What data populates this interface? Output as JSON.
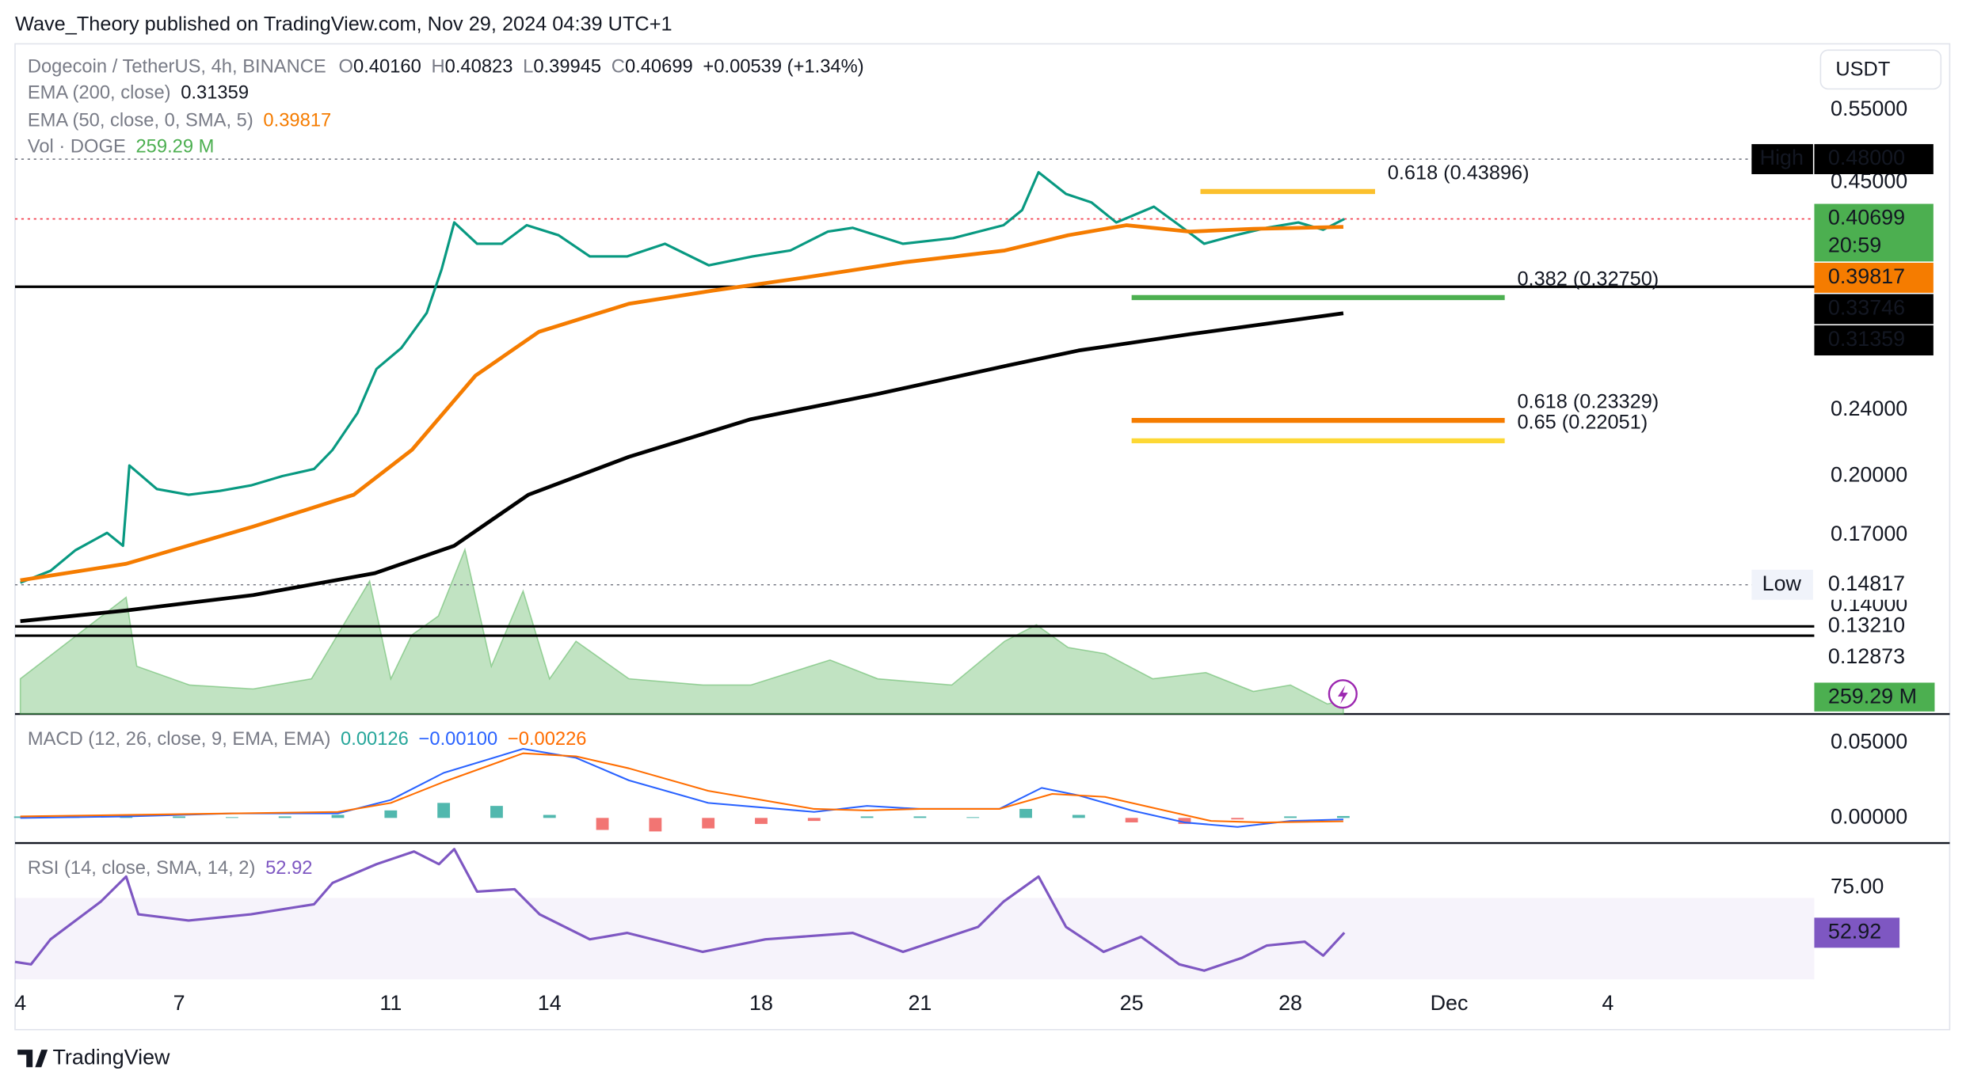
{
  "header": {
    "text": "Wave_Theory published on TradingView.com, Nov 29, 2024 04:39 UTC+1"
  },
  "footer": {
    "brand": "TradingView"
  },
  "chart_data": {
    "type": "line",
    "symbol": "Dogecoin / TetherUS, 4h, BINANCE",
    "ohlc": [
      {
        "label": "O",
        "value": "0.40160"
      },
      {
        "label": "H",
        "value": "0.40823"
      },
      {
        "label": "L",
        "value": "0.39945"
      },
      {
        "label": "C",
        "value": "0.40699"
      }
    ],
    "change": "+0.00539 (+1.34%)",
    "currency": "USDT",
    "log_scale": true,
    "xlim": [
      -0.1,
      33.9
    ],
    "xticks": [
      {
        "value": 0,
        "label": "4"
      },
      {
        "value": 3,
        "label": "7"
      },
      {
        "value": 7,
        "label": "11"
      },
      {
        "value": 10,
        "label": "14"
      },
      {
        "value": 14,
        "label": "18"
      },
      {
        "value": 17,
        "label": "21"
      },
      {
        "value": 21,
        "label": "25"
      },
      {
        "value": 24,
        "label": "28"
      },
      {
        "value": 27,
        "label": "Dec"
      },
      {
        "value": 30,
        "label": "4"
      }
    ],
    "ylim": [
      0.1037,
      0.66
    ],
    "yticks": [
      {
        "value": 0.55,
        "label": "0.55000"
      },
      {
        "value": 0.45,
        "label": "0.45000"
      },
      {
        "value": 0.24,
        "label": "0.24000"
      },
      {
        "value": 0.2,
        "label": "0.20000"
      },
      {
        "value": 0.17,
        "label": "0.17000"
      },
      {
        "value": 0.14,
        "label": "0.14000"
      }
    ],
    "series": [
      {
        "color": "#089981",
        "x": [
          0,
          0.57,
          1.04,
          1.64,
          1.94,
          2.06,
          2.58,
          3.18,
          3.77,
          4.36,
          4.95,
          5.55,
          5.9,
          6.37,
          6.73,
          7.2,
          7.68,
          7.96,
          8.2,
          8.63,
          9.1,
          9.57,
          10.17,
          10.76,
          11.47,
          12.18,
          13.01,
          13.84,
          14.55,
          15.26,
          15.73,
          16.68,
          17.63,
          18.58,
          18.93,
          19.24,
          19.76,
          20.24,
          20.71,
          21.42,
          21.9,
          22.37,
          22.96,
          23.55,
          24.15,
          24.62,
          25.02
        ],
        "values": [
          0.149,
          0.154,
          0.163,
          0.171,
          0.165,
          0.206,
          0.193,
          0.19,
          0.192,
          0.195,
          0.2,
          0.204,
          0.215,
          0.238,
          0.269,
          0.285,
          0.314,
          0.354,
          0.403,
          0.38,
          0.38,
          0.4,
          0.389,
          0.367,
          0.367,
          0.38,
          0.358,
          0.367,
          0.373,
          0.393,
          0.397,
          0.38,
          0.386,
          0.4,
          0.417,
          0.463,
          0.436,
          0.426,
          0.403,
          0.421,
          0.4,
          0.38,
          0.389,
          0.397,
          0.403,
          0.395,
          0.40699
        ]
      },
      {
        "name": "EMA (200, close)",
        "legend_value": "0.31359",
        "color": "#000000",
        "x": [
          0,
          2.0,
          4.4,
          6.7,
          8.2,
          9.6,
          11.5,
          13.8,
          16.2,
          18.6,
          20.0,
          22.1,
          25.0
        ],
        "values": [
          0.134,
          0.138,
          0.144,
          0.153,
          0.165,
          0.19,
          0.211,
          0.234,
          0.251,
          0.271,
          0.283,
          0.296,
          0.31359
        ]
      },
      {
        "name": "EMA (50, close, 0, SMA, 5)",
        "legend_value": "0.39817",
        "color": "#f57c00",
        "x": [
          0,
          2.0,
          4.4,
          6.3,
          7.4,
          8.6,
          9.8,
          11.5,
          13.1,
          14.8,
          16.7,
          18.6,
          19.8,
          20.9,
          22.1,
          23.3,
          25.0
        ],
        "values": [
          0.15,
          0.157,
          0.174,
          0.19,
          0.215,
          0.264,
          0.298,
          0.322,
          0.334,
          0.346,
          0.361,
          0.373,
          0.389,
          0.4,
          0.393,
          0.396,
          0.39817
        ]
      }
    ],
    "volume": {
      "name": "Vol · DOGE",
      "legend_value": "259.29 M",
      "color": "#4caf50",
      "ylim": [
        0,
        12600
      ],
      "x": [
        0,
        2.0,
        2.2,
        3.2,
        4.4,
        5.5,
        6.6,
        7.0,
        7.4,
        7.9,
        8.4,
        8.9,
        9.5,
        10.0,
        10.5,
        11.5,
        12.9,
        13.8,
        15.3,
        16.2,
        17.6,
        18.6,
        19.2,
        19.8,
        20.5,
        21.4,
        22.4,
        23.3,
        24.0,
        24.7,
        25.0
      ],
      "values": [
        661,
        2195,
        897,
        543,
        472,
        661,
        2502,
        661,
        1487,
        1841,
        3092,
        897,
        2313,
        661,
        1369,
        661,
        543,
        543,
        1015,
        661,
        543,
        1369,
        1676,
        1251,
        1133,
        661,
        779,
        425,
        543,
        189,
        259.29
      ]
    },
    "price_labels": [
      {
        "value": 0.48,
        "label": "0.48000",
        "tag": "High",
        "color": "#000000",
        "text_color": "#ffffff",
        "line": "dotted",
        "line_color": "#787b86"
      },
      {
        "value": 0.40699,
        "label": "0.40699",
        "countdown": "20:59",
        "color": "#4caf50",
        "text_color": "#ffffff",
        "line": "dotted",
        "line_color": "#f23645"
      },
      {
        "value": 0.39817,
        "label": "0.39817",
        "color": "#f57c00",
        "text_color": "#ffffff"
      },
      {
        "value": 0.33746,
        "label": "0.33746",
        "color": "#000000",
        "text_color": "#ffffff",
        "line": "solid",
        "line_color": "#000000"
      },
      {
        "value": 0.31359,
        "label": "0.31359",
        "color": "#000000",
        "text_color": "#ffffff"
      },
      {
        "value": 0.14817,
        "label": "0.14817",
        "tag": "Low",
        "color": "#ffffff",
        "text_color": "#000000",
        "line": "dotted",
        "line_color": "#787b86"
      },
      {
        "value": 0.1321,
        "label": "0.13210",
        "color": "#ffffff",
        "text_color": "#000000",
        "line": "solid",
        "line_color": "#000000"
      },
      {
        "value": 0.12873,
        "label": "0.12873",
        "color": "#ffffff",
        "text_color": "#000000",
        "line": "solid",
        "line_color": "#000000"
      }
    ],
    "fib_levels": [
      {
        "value": 0.43896,
        "label": "0.618 (0.43896)",
        "color": "#fbc02d",
        "x": [
          22.3,
          25.6
        ]
      },
      {
        "value": 0.3275,
        "label": "0.382 (0.32750)",
        "color": "#4caf50",
        "x": [
          21.0,
          28.05
        ]
      },
      {
        "value": 0.23329,
        "label": "0.618 (0.23329)",
        "color": "#f57c00",
        "x": [
          21.0,
          28.05
        ]
      },
      {
        "value": 0.22051,
        "label": "0.65 (0.22051)",
        "color": "#fdd835",
        "x": [
          21.0,
          28.05
        ]
      }
    ],
    "macd": {
      "title": "MACD (12, 26, close, 9, EMA, EMA)",
      "ylim": [
        -0.0167,
        0.0692
      ],
      "yticks": [
        {
          "value": 0.05,
          "label": "0.05000"
        },
        {
          "value": 0,
          "label": "0.00000"
        }
      ],
      "histogram": {
        "legend_value": "0.00126",
        "color": "#26a69a",
        "negative_color": "#ef5350",
        "x": [
          0,
          1,
          2,
          3,
          4,
          5,
          6,
          7,
          8,
          9,
          10,
          11,
          12,
          13,
          14,
          15,
          16,
          17,
          18,
          19,
          20,
          21,
          22,
          23,
          24,
          25
        ],
        "values": [
          0.001,
          0.001,
          0.002,
          0.001,
          0.0005,
          0.001,
          0.002,
          0.005,
          0.01,
          0.008,
          0.002,
          -0.008,
          -0.009,
          -0.007,
          -0.004,
          -0.002,
          0.001,
          0.001,
          0.0005,
          0.006,
          0.002,
          -0.003,
          -0.004,
          -0.001,
          0.001,
          0.00126
        ]
      },
      "macd_line": {
        "legend_value": "−0.00100",
        "color": "#2962ff",
        "x": [
          0,
          2,
          4,
          6,
          7,
          8,
          9.5,
          10.5,
          11.5,
          13,
          15,
          16,
          17,
          18.5,
          19.3,
          20,
          21,
          22,
          23,
          24,
          25
        ],
        "values": [
          0,
          0.001,
          0.003,
          0.003,
          0.012,
          0.03,
          0.046,
          0.04,
          0.025,
          0.01,
          0.004,
          0.008,
          0.006,
          0.006,
          0.02,
          0.015,
          0.005,
          -0.003,
          -0.006,
          -0.002,
          -0.001
        ]
      },
      "signal_line": {
        "legend_value": "−0.00226",
        "color": "#ff6d00",
        "x": [
          0,
          2,
          4,
          6,
          7,
          8,
          9.5,
          10.5,
          11.5,
          13,
          15,
          16,
          17,
          18.5,
          19.5,
          20.5,
          21.5,
          22.5,
          23.5,
          25
        ],
        "values": [
          0.001,
          0.002,
          0.003,
          0.004,
          0.01,
          0.024,
          0.043,
          0.041,
          0.033,
          0.018,
          0.006,
          0.005,
          0.006,
          0.006,
          0.016,
          0.014,
          0.006,
          -0.002,
          -0.003,
          -0.00226
        ]
      }
    },
    "rsi": {
      "title": "RSI (14, close, SMA, 14, 2)",
      "legend_value": "52.92",
      "color": "#7e57c2",
      "ylim": [
        25,
        97
      ],
      "yticks": [
        {
          "value": 75,
          "label": "75.00"
        }
      ],
      "band": [
        30,
        70
      ],
      "x": [
        -0.1,
        0.2,
        0.57,
        1.52,
        2.0,
        2.23,
        3.18,
        4.36,
        5.55,
        5.9,
        6.73,
        7.44,
        7.91,
        8.2,
        8.63,
        9.34,
        9.81,
        10.76,
        11.47,
        12.89,
        14.08,
        15.73,
        16.68,
        18.1,
        18.58,
        19.24,
        19.76,
        20.47,
        21.18,
        21.9,
        22.37,
        23.08,
        23.55,
        24.27,
        24.62,
        25.02
      ],
      "values": [
        38.6,
        37.4,
        49.7,
        68.2,
        80.5,
        62,
        58.9,
        62,
        66.9,
        77.4,
        86.6,
        92.8,
        86.6,
        94,
        73.1,
        74.3,
        62,
        49.7,
        52.8,
        43.5,
        49.7,
        52.8,
        43.5,
        55.8,
        68.2,
        80.5,
        55.8,
        43.5,
        50.9,
        37.4,
        34.3,
        40.5,
        46.6,
        48.5,
        41.7,
        52.92
      ]
    }
  }
}
